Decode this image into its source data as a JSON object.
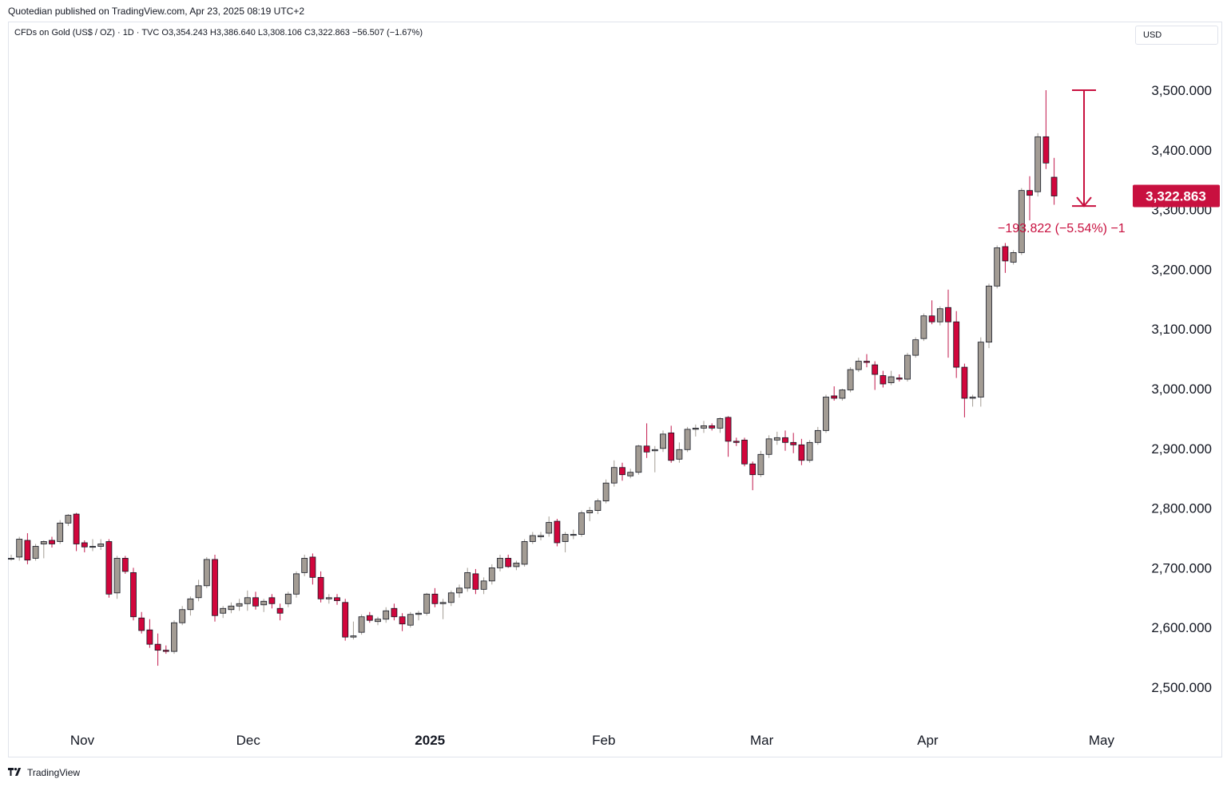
{
  "header": {
    "publisher_line": "Quotedian published on TradingView.com, Apr 23, 2025 08:19 UTC+2"
  },
  "legend": {
    "text": "CFDs on Gold (US$ / OZ) · 1D · TVC  O3,354.243  H3,386.640  L3,308.106  C3,322.863  −56.507 (−1.67%)"
  },
  "currency": {
    "label": "USD"
  },
  "footer": {
    "brand": "TradingView",
    "logo_icon": "tradingview-logo-icon"
  },
  "colors": {
    "up": "#a39c94",
    "down": "#d1063c",
    "wick_up": "#a39c94",
    "wick_down": "#c21a4d",
    "accent": "#c8103f",
    "text": "#131722"
  },
  "chart_data": {
    "type": "candlestick",
    "ylim": [
      2435,
      3600
    ],
    "y_ticks": [
      2500,
      2600,
      2700,
      2800,
      2900,
      3000,
      3100,
      3200,
      3300,
      3400,
      3500
    ],
    "y_tick_labels": [
      "2,500.000",
      "2,600.000",
      "2,700.000",
      "2,800.000",
      "2,900.000",
      "3,000.000",
      "3,100.000",
      "3,200.000",
      "3,300.000",
      "3,400.000",
      "3,500.000"
    ],
    "x_labels": [
      {
        "label": "Nov",
        "date": "2024-11-01",
        "bold": false
      },
      {
        "label": "Dec",
        "date": "2024-12-02",
        "bold": false
      },
      {
        "label": "2025",
        "date": "2025-01-02",
        "bold": true
      },
      {
        "label": "Feb",
        "date": "2025-02-03",
        "bold": false
      },
      {
        "label": "Mar",
        "date": "2025-03-03",
        "bold": false
      },
      {
        "label": "Apr",
        "date": "2025-04-01",
        "bold": false
      },
      {
        "label": "May",
        "date": "2025-05-01",
        "bold": false
      }
    ],
    "last_price": 3322.863,
    "last_price_label": "3,322.863",
    "measure": {
      "from": 3500,
      "to": 3306,
      "label": "−193.822 (−5.54%) −1"
    },
    "candles": [
      {
        "o": 2716,
        "h": 2722,
        "l": 2712,
        "c": 2716
      },
      {
        "o": 2718,
        "h": 2752,
        "l": 2712,
        "c": 2748
      },
      {
        "o": 2746,
        "h": 2758,
        "l": 2706,
        "c": 2713
      },
      {
        "o": 2716,
        "h": 2740,
        "l": 2712,
        "c": 2736
      },
      {
        "o": 2740,
        "h": 2746,
        "l": 2716,
        "c": 2744
      },
      {
        "o": 2746,
        "h": 2752,
        "l": 2734,
        "c": 2740
      },
      {
        "o": 2744,
        "h": 2780,
        "l": 2740,
        "c": 2775
      },
      {
        "o": 2775,
        "h": 2790,
        "l": 2770,
        "c": 2788
      },
      {
        "o": 2790,
        "h": 2792,
        "l": 2728,
        "c": 2740
      },
      {
        "o": 2742,
        "h": 2746,
        "l": 2726,
        "c": 2735
      },
      {
        "o": 2735,
        "h": 2748,
        "l": 2728,
        "c": 2736
      },
      {
        "o": 2736,
        "h": 2748,
        "l": 2730,
        "c": 2740
      },
      {
        "o": 2744,
        "h": 2748,
        "l": 2650,
        "c": 2656
      },
      {
        "o": 2658,
        "h": 2720,
        "l": 2648,
        "c": 2716
      },
      {
        "o": 2716,
        "h": 2720,
        "l": 2690,
        "c": 2694
      },
      {
        "o": 2692,
        "h": 2700,
        "l": 2612,
        "c": 2618
      },
      {
        "o": 2616,
        "h": 2626,
        "l": 2590,
        "c": 2595
      },
      {
        "o": 2596,
        "h": 2614,
        "l": 2566,
        "c": 2572
      },
      {
        "o": 2572,
        "h": 2590,
        "l": 2536,
        "c": 2562
      },
      {
        "o": 2562,
        "h": 2570,
        "l": 2556,
        "c": 2560
      },
      {
        "o": 2560,
        "h": 2612,
        "l": 2556,
        "c": 2608
      },
      {
        "o": 2608,
        "h": 2636,
        "l": 2604,
        "c": 2630
      },
      {
        "o": 2630,
        "h": 2652,
        "l": 2620,
        "c": 2648
      },
      {
        "o": 2650,
        "h": 2680,
        "l": 2644,
        "c": 2670
      },
      {
        "o": 2670,
        "h": 2718,
        "l": 2666,
        "c": 2714
      },
      {
        "o": 2714,
        "h": 2722,
        "l": 2610,
        "c": 2620
      },
      {
        "o": 2624,
        "h": 2636,
        "l": 2616,
        "c": 2632
      },
      {
        "o": 2630,
        "h": 2642,
        "l": 2624,
        "c": 2636
      },
      {
        "o": 2636,
        "h": 2648,
        "l": 2628,
        "c": 2640
      },
      {
        "o": 2640,
        "h": 2662,
        "l": 2628,
        "c": 2650
      },
      {
        "o": 2650,
        "h": 2660,
        "l": 2630,
        "c": 2636
      },
      {
        "o": 2638,
        "h": 2648,
        "l": 2626,
        "c": 2644
      },
      {
        "o": 2650,
        "h": 2656,
        "l": 2632,
        "c": 2640
      },
      {
        "o": 2632,
        "h": 2640,
        "l": 2612,
        "c": 2624
      },
      {
        "o": 2640,
        "h": 2660,
        "l": 2634,
        "c": 2656
      },
      {
        "o": 2656,
        "h": 2694,
        "l": 2650,
        "c": 2690
      },
      {
        "o": 2692,
        "h": 2722,
        "l": 2686,
        "c": 2716
      },
      {
        "o": 2718,
        "h": 2724,
        "l": 2672,
        "c": 2684
      },
      {
        "o": 2684,
        "h": 2694,
        "l": 2642,
        "c": 2648
      },
      {
        "o": 2648,
        "h": 2656,
        "l": 2640,
        "c": 2650
      },
      {
        "o": 2650,
        "h": 2656,
        "l": 2638,
        "c": 2645
      },
      {
        "o": 2642,
        "h": 2648,
        "l": 2578,
        "c": 2584
      },
      {
        "o": 2584,
        "h": 2610,
        "l": 2580,
        "c": 2586
      },
      {
        "o": 2592,
        "h": 2622,
        "l": 2588,
        "c": 2618
      },
      {
        "o": 2620,
        "h": 2626,
        "l": 2608,
        "c": 2612
      },
      {
        "o": 2610,
        "h": 2618,
        "l": 2604,
        "c": 2614
      },
      {
        "o": 2614,
        "h": 2634,
        "l": 2608,
        "c": 2628
      },
      {
        "o": 2632,
        "h": 2640,
        "l": 2612,
        "c": 2618
      },
      {
        "o": 2618,
        "h": 2624,
        "l": 2594,
        "c": 2606
      },
      {
        "o": 2604,
        "h": 2626,
        "l": 2600,
        "c": 2622
      },
      {
        "o": 2622,
        "h": 2628,
        "l": 2612,
        "c": 2624
      },
      {
        "o": 2624,
        "h": 2658,
        "l": 2620,
        "c": 2656
      },
      {
        "o": 2656,
        "h": 2666,
        "l": 2634,
        "c": 2640
      },
      {
        "o": 2640,
        "h": 2648,
        "l": 2614,
        "c": 2642
      },
      {
        "o": 2642,
        "h": 2662,
        "l": 2636,
        "c": 2658
      },
      {
        "o": 2658,
        "h": 2672,
        "l": 2650,
        "c": 2666
      },
      {
        "o": 2666,
        "h": 2700,
        "l": 2660,
        "c": 2692
      },
      {
        "o": 2690,
        "h": 2698,
        "l": 2656,
        "c": 2664
      },
      {
        "o": 2664,
        "h": 2684,
        "l": 2656,
        "c": 2678
      },
      {
        "o": 2678,
        "h": 2706,
        "l": 2672,
        "c": 2700
      },
      {
        "o": 2700,
        "h": 2722,
        "l": 2694,
        "c": 2716
      },
      {
        "o": 2716,
        "h": 2722,
        "l": 2700,
        "c": 2702
      },
      {
        "o": 2702,
        "h": 2712,
        "l": 2696,
        "c": 2708
      },
      {
        "o": 2706,
        "h": 2748,
        "l": 2702,
        "c": 2744
      },
      {
        "o": 2744,
        "h": 2760,
        "l": 2740,
        "c": 2754
      },
      {
        "o": 2752,
        "h": 2760,
        "l": 2746,
        "c": 2754
      },
      {
        "o": 2758,
        "h": 2786,
        "l": 2752,
        "c": 2776
      },
      {
        "o": 2778,
        "h": 2782,
        "l": 2736,
        "c": 2742
      },
      {
        "o": 2744,
        "h": 2760,
        "l": 2726,
        "c": 2756
      },
      {
        "o": 2756,
        "h": 2764,
        "l": 2748,
        "c": 2756
      },
      {
        "o": 2756,
        "h": 2796,
        "l": 2752,
        "c": 2792
      },
      {
        "o": 2792,
        "h": 2802,
        "l": 2778,
        "c": 2796
      },
      {
        "o": 2796,
        "h": 2816,
        "l": 2790,
        "c": 2812
      },
      {
        "o": 2812,
        "h": 2848,
        "l": 2808,
        "c": 2842
      },
      {
        "o": 2842,
        "h": 2880,
        "l": 2836,
        "c": 2868
      },
      {
        "o": 2868,
        "h": 2876,
        "l": 2846,
        "c": 2856
      },
      {
        "o": 2854,
        "h": 2866,
        "l": 2850,
        "c": 2860
      },
      {
        "o": 2860,
        "h": 2906,
        "l": 2856,
        "c": 2904
      },
      {
        "o": 2904,
        "h": 2942,
        "l": 2884,
        "c": 2894
      },
      {
        "o": 2896,
        "h": 2904,
        "l": 2860,
        "c": 2898
      },
      {
        "o": 2900,
        "h": 2930,
        "l": 2894,
        "c": 2924
      },
      {
        "o": 2926,
        "h": 2938,
        "l": 2876,
        "c": 2880
      },
      {
        "o": 2882,
        "h": 2910,
        "l": 2876,
        "c": 2898
      },
      {
        "o": 2898,
        "h": 2936,
        "l": 2894,
        "c": 2932
      },
      {
        "o": 2932,
        "h": 2940,
        "l": 2920,
        "c": 2934
      },
      {
        "o": 2934,
        "h": 2946,
        "l": 2926,
        "c": 2938
      },
      {
        "o": 2938,
        "h": 2942,
        "l": 2930,
        "c": 2934
      },
      {
        "o": 2934,
        "h": 2952,
        "l": 2926,
        "c": 2950
      },
      {
        "o": 2952,
        "h": 2954,
        "l": 2886,
        "c": 2912
      },
      {
        "o": 2912,
        "h": 2918,
        "l": 2904,
        "c": 2910
      },
      {
        "o": 2914,
        "h": 2918,
        "l": 2870,
        "c": 2874
      },
      {
        "o": 2874,
        "h": 2878,
        "l": 2830,
        "c": 2856
      },
      {
        "o": 2856,
        "h": 2896,
        "l": 2852,
        "c": 2890
      },
      {
        "o": 2890,
        "h": 2922,
        "l": 2884,
        "c": 2916
      },
      {
        "o": 2914,
        "h": 2928,
        "l": 2906,
        "c": 2918
      },
      {
        "o": 2918,
        "h": 2930,
        "l": 2896,
        "c": 2910
      },
      {
        "o": 2910,
        "h": 2926,
        "l": 2892,
        "c": 2906
      },
      {
        "o": 2906,
        "h": 2916,
        "l": 2872,
        "c": 2880
      },
      {
        "o": 2880,
        "h": 2914,
        "l": 2876,
        "c": 2910
      },
      {
        "o": 2910,
        "h": 2936,
        "l": 2906,
        "c": 2930
      },
      {
        "o": 2930,
        "h": 2990,
        "l": 2926,
        "c": 2986
      },
      {
        "o": 2988,
        "h": 3004,
        "l": 2980,
        "c": 2984
      },
      {
        "o": 2984,
        "h": 3000,
        "l": 2980,
        "c": 2998
      },
      {
        "o": 2998,
        "h": 3036,
        "l": 2994,
        "c": 3032
      },
      {
        "o": 3032,
        "h": 3052,
        "l": 3028,
        "c": 3046
      },
      {
        "o": 3046,
        "h": 3058,
        "l": 3036,
        "c": 3044
      },
      {
        "o": 3040,
        "h": 3046,
        "l": 2998,
        "c": 3024
      },
      {
        "o": 3022,
        "h": 3030,
        "l": 3002,
        "c": 3008
      },
      {
        "o": 3010,
        "h": 3030,
        "l": 3006,
        "c": 3020
      },
      {
        "o": 3018,
        "h": 3024,
        "l": 3012,
        "c": 3016
      },
      {
        "o": 3016,
        "h": 3060,
        "l": 3012,
        "c": 3056
      },
      {
        "o": 3056,
        "h": 3086,
        "l": 3052,
        "c": 3082
      },
      {
        "o": 3084,
        "h": 3126,
        "l": 3080,
        "c": 3122
      },
      {
        "o": 3122,
        "h": 3148,
        "l": 3108,
        "c": 3112
      },
      {
        "o": 3112,
        "h": 3138,
        "l": 3106,
        "c": 3134
      },
      {
        "o": 3136,
        "h": 3166,
        "l": 3052,
        "c": 3112
      },
      {
        "o": 3112,
        "h": 3130,
        "l": 3018,
        "c": 3036
      },
      {
        "o": 3036,
        "h": 3042,
        "l": 2952,
        "c": 2984
      },
      {
        "o": 2984,
        "h": 2990,
        "l": 2970,
        "c": 2986
      },
      {
        "o": 2986,
        "h": 3086,
        "l": 2970,
        "c": 3078
      },
      {
        "o": 3078,
        "h": 3176,
        "l": 3068,
        "c": 3172
      },
      {
        "o": 3172,
        "h": 3240,
        "l": 3168,
        "c": 3236
      },
      {
        "o": 3238,
        "h": 3244,
        "l": 3194,
        "c": 3214
      },
      {
        "o": 3212,
        "h": 3232,
        "l": 3208,
        "c": 3228
      },
      {
        "o": 3228,
        "h": 3336,
        "l": 3224,
        "c": 3332
      },
      {
        "o": 3332,
        "h": 3356,
        "l": 3282,
        "c": 3324
      },
      {
        "o": 3330,
        "h": 3428,
        "l": 3322,
        "c": 3422
      },
      {
        "o": 3422,
        "h": 3500,
        "l": 3368,
        "c": 3378
      },
      {
        "o": 3354.243,
        "h": 3386.64,
        "l": 3308.106,
        "c": 3322.863
      }
    ]
  }
}
